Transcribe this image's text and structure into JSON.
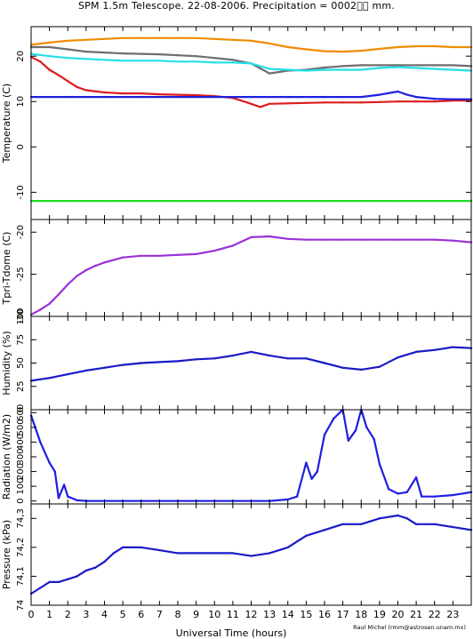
{
  "title": "SPM 1.5m Telescope. 22-08-2006. Precipitation = 0002\u0000\u0000 mm.",
  "credit": "Raul Michel (rmm@astrosen.unam.mx)",
  "xlabel": "Universal Time (hours)",
  "chart_data": [
    {
      "type": "scatter",
      "ylabel": "Temperature (C)",
      "ylim": [
        -16,
        26.5
      ],
      "yticks": [
        -10,
        0,
        10,
        20
      ],
      "xlim": [
        0,
        24
      ],
      "series": [
        {
          "color": "#f08c00",
          "x": [
            0,
            1,
            2,
            3,
            4,
            5,
            6,
            7,
            8,
            9,
            10,
            11,
            12,
            13,
            14,
            15,
            16,
            17,
            18,
            19,
            20,
            21,
            22,
            23,
            24
          ],
          "y": [
            22.5,
            23,
            23.4,
            23.6,
            23.8,
            24,
            24,
            24,
            24,
            24,
            23.8,
            23.6,
            23.4,
            22.8,
            22,
            21.5,
            21.1,
            21,
            21.2,
            21.6,
            22,
            22.2,
            22.2,
            22,
            22
          ]
        },
        {
          "color": "#6e6e6e",
          "x": [
            0,
            1,
            2,
            3,
            4,
            5,
            6,
            7,
            8,
            9,
            10,
            11,
            12,
            13,
            14,
            15,
            16,
            17,
            18,
            19,
            20,
            21,
            22,
            23,
            24
          ],
          "y": [
            22,
            22,
            21.5,
            21,
            20.8,
            20.6,
            20.5,
            20.4,
            20.2,
            20,
            19.6,
            19.2,
            18.4,
            16.2,
            16.8,
            17,
            17.5,
            17.8,
            18,
            18,
            18,
            18,
            18,
            18,
            17.8
          ]
        },
        {
          "color": "#22e0e8",
          "x": [
            0,
            1,
            2,
            3,
            4,
            5,
            6,
            7,
            8,
            9,
            10,
            11,
            12,
            13,
            14,
            15,
            16,
            17,
            18,
            19,
            20,
            21,
            22,
            23,
            24
          ],
          "y": [
            20.5,
            20,
            19.6,
            19.4,
            19.2,
            19,
            19,
            19,
            18.8,
            18.8,
            18.6,
            18.6,
            18.4,
            17.2,
            17,
            16.8,
            17,
            17,
            17,
            17.4,
            17.6,
            17.4,
            17.2,
            17,
            16.8
          ]
        },
        {
          "color": "#dd1c1c",
          "x": [
            0,
            0.5,
            1,
            1.5,
            2,
            2.5,
            3,
            4,
            5,
            6,
            7,
            8,
            9,
            10,
            11,
            12,
            12.5,
            13,
            14,
            15,
            16,
            17,
            18,
            19,
            20,
            21,
            22,
            23,
            24
          ],
          "y": [
            19.8,
            18.8,
            17,
            15.8,
            14.5,
            13.2,
            12.5,
            12,
            11.8,
            11.8,
            11.6,
            11.5,
            11.4,
            11.2,
            10.8,
            9.5,
            8.8,
            9.5,
            9.6,
            9.7,
            9.8,
            9.8,
            9.8,
            9.9,
            10,
            10,
            10,
            10.2,
            10.2
          ]
        },
        {
          "color": "#1e1ee0",
          "x": [
            0,
            2,
            4,
            6,
            8,
            10,
            12,
            14,
            16,
            18,
            19,
            20,
            20.5,
            21,
            22,
            23,
            24
          ],
          "y": [
            11,
            11,
            11,
            11,
            11,
            11,
            11,
            11,
            11,
            11,
            11.5,
            12.2,
            11.5,
            11,
            10.6,
            10.5,
            10.5
          ]
        },
        {
          "color": "#22dd22",
          "x": [
            0,
            4,
            8,
            12,
            16,
            20,
            24
          ],
          "y": [
            -11.9,
            -11.9,
            -11.9,
            -11.9,
            -11.9,
            -11.9,
            -11.9
          ]
        }
      ]
    },
    {
      "type": "scatter",
      "ylabel": "Tpri-Tdome (C)",
      "ylim": [
        -30,
        -18.5
      ],
      "yticks": [
        -30,
        -25,
        -20
      ],
      "xlim": [
        0,
        24
      ],
      "series": [
        {
          "color": "#9b30d8",
          "x": [
            0,
            0.5,
            1,
            1.5,
            2,
            2.5,
            3,
            3.5,
            4,
            5,
            6,
            7,
            8,
            9,
            10,
            11,
            12,
            13,
            14,
            15,
            16,
            17,
            18,
            19,
            20,
            21,
            22,
            23,
            24
          ],
          "y": [
            -29.8,
            -29.2,
            -28.5,
            -27.4,
            -26.2,
            -25.2,
            -24.5,
            -24,
            -23.6,
            -23,
            -22.8,
            -22.8,
            -22.7,
            -22.6,
            -22.2,
            -21.6,
            -20.6,
            -20.5,
            -20.8,
            -20.9,
            -20.9,
            -20.9,
            -20.9,
            -20.9,
            -20.9,
            -20.9,
            -20.9,
            -21,
            -21.2
          ]
        }
      ]
    },
    {
      "type": "scatter",
      "ylabel": "Humidity (%)",
      "ylim": [
        0,
        100
      ],
      "yticks": [
        0,
        25,
        50,
        75,
        100
      ],
      "xlim": [
        0,
        24
      ],
      "series": [
        {
          "color": "#1a1ac8",
          "x": [
            0,
            1,
            2,
            3,
            4,
            5,
            6,
            7,
            8,
            9,
            10,
            11,
            12,
            13,
            14,
            15,
            16,
            17,
            18,
            19,
            20,
            21,
            22,
            23,
            24
          ],
          "y": [
            31,
            34,
            38,
            42,
            45,
            48,
            50,
            51,
            52,
            54,
            55,
            58,
            62,
            58,
            55,
            55,
            50,
            45,
            43,
            46,
            56,
            62,
            64,
            67,
            66
          ]
        }
      ]
    },
    {
      "type": "scatter",
      "ylabel": "Radiation (W/m2)",
      "ylim": [
        -20,
        620
      ],
      "yticks": [
        0,
        100,
        200,
        300,
        400,
        500,
        600
      ],
      "xlim": [
        0,
        24
      ],
      "series": [
        {
          "color": "#1e1ee0",
          "x": [
            0,
            0.5,
            1,
            1.3,
            1.5,
            1.8,
            2,
            2.5,
            3,
            4,
            6,
            8,
            10,
            12,
            13,
            14,
            14.5,
            15,
            15.3,
            15.6,
            16,
            16.5,
            17,
            17.3,
            17.7,
            18,
            18.3,
            18.7,
            19,
            19.5,
            20,
            20.5,
            21,
            21.3,
            22,
            23,
            24
          ],
          "y": [
            580,
            400,
            260,
            200,
            20,
            110,
            30,
            5,
            0,
            0,
            0,
            0,
            0,
            0,
            0,
            10,
            30,
            260,
            150,
            200,
            450,
            560,
            620,
            410,
            480,
            620,
            500,
            420,
            250,
            80,
            50,
            60,
            160,
            30,
            30,
            40,
            60
          ]
        }
      ]
    },
    {
      "type": "scatter",
      "ylabel": "Pressure (kPa)",
      "ylim": [
        74,
        74.35
      ],
      "yticks": [
        74,
        74.1,
        74.2,
        74.3
      ],
      "xlim": [
        0,
        24
      ],
      "series": [
        {
          "color": "#1a1ac8",
          "x": [
            0,
            0.5,
            1,
            1.5,
            2,
            2.5,
            3,
            3.5,
            4,
            4.5,
            5,
            6,
            7,
            8,
            9,
            10,
            11,
            12,
            13,
            14,
            14.5,
            15,
            16,
            17,
            18,
            19,
            20,
            20.5,
            21,
            22,
            23,
            24
          ],
          "y": [
            74.04,
            74.06,
            74.08,
            74.08,
            74.09,
            74.1,
            74.12,
            74.13,
            74.15,
            74.18,
            74.2,
            74.2,
            74.19,
            74.18,
            74.18,
            74.18,
            74.18,
            74.17,
            74.18,
            74.2,
            74.22,
            74.24,
            74.26,
            74.28,
            74.28,
            74.3,
            74.31,
            74.3,
            74.28,
            74.28,
            74.27,
            74.26
          ]
        }
      ]
    }
  ]
}
